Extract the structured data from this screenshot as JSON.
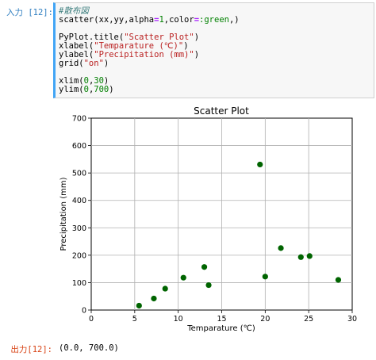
{
  "input_prompt": "入力 [12]:",
  "output_prompt": "出力[12]:",
  "output_text": "(0.0, 700.0)",
  "code": [
    [
      {
        "t": "#散布図",
        "c": "comment"
      }
    ],
    [
      {
        "t": "scatter(xx,yy,alpha",
        "c": ""
      },
      {
        "t": "=",
        "c": "op"
      },
      {
        "t": "1",
        "c": "number"
      },
      {
        "t": ",color",
        "c": ""
      },
      {
        "t": "=",
        "c": "op"
      },
      {
        "t": ":green",
        "c": "kw"
      },
      {
        "t": ",)",
        "c": ""
      }
    ],
    [],
    [
      {
        "t": "PyPlot.title(",
        "c": ""
      },
      {
        "t": "\"Scatter Plot\"",
        "c": "string"
      },
      {
        "t": ")",
        "c": ""
      }
    ],
    [
      {
        "t": "xlabel(",
        "c": ""
      },
      {
        "t": "\"Temparature (℃)\"",
        "c": "string"
      },
      {
        "t": ")",
        "c": ""
      }
    ],
    [
      {
        "t": "ylabel(",
        "c": ""
      },
      {
        "t": "\"Precipitation (mm)\"",
        "c": "string"
      },
      {
        "t": ")",
        "c": ""
      }
    ],
    [
      {
        "t": "grid(",
        "c": ""
      },
      {
        "t": "\"on\"",
        "c": "string"
      },
      {
        "t": ")",
        "c": ""
      }
    ],
    [],
    [
      {
        "t": "xlim(",
        "c": ""
      },
      {
        "t": "0",
        "c": "number"
      },
      {
        "t": ",",
        "c": ""
      },
      {
        "t": "30",
        "c": "number"
      },
      {
        "t": ")",
        "c": ""
      }
    ],
    [
      {
        "t": "ylim(",
        "c": ""
      },
      {
        "t": "0",
        "c": "number"
      },
      {
        "t": ",",
        "c": ""
      },
      {
        "t": "700",
        "c": "number"
      },
      {
        "t": ")",
        "c": ""
      }
    ]
  ],
  "chart_data": {
    "type": "scatter",
    "title": "Scatter Plot",
    "xlabel": "Temparature (℃)",
    "ylabel": "Precipitation (mm)",
    "xlim": [
      0,
      30
    ],
    "ylim": [
      0,
      700
    ],
    "xticks": [
      "0",
      "5",
      "10",
      "15",
      "20",
      "25",
      "30"
    ],
    "yticks": [
      "0",
      "100",
      "200",
      "300",
      "400",
      "500",
      "600",
      "700"
    ],
    "grid": true,
    "color": "#006400",
    "series": [
      {
        "x": [
          5.5,
          7.2,
          8.5,
          10.6,
          13.0,
          13.5,
          19.4,
          20.0,
          21.8,
          24.1,
          25.1,
          28.4
        ],
        "y": [
          16,
          42,
          78,
          118,
          157,
          91,
          531,
          122,
          226,
          193,
          197,
          110
        ]
      }
    ]
  }
}
